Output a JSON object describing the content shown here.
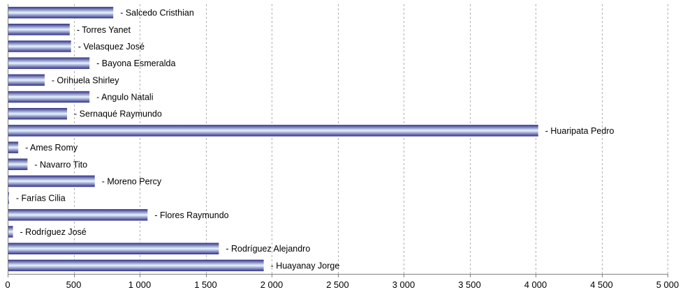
{
  "chart_data": {
    "type": "bar",
    "orientation": "horizontal",
    "categories": [
      "Salcedo Cristhian",
      "Torres Yanet",
      "Velasquez José",
      "Bayona Esmeralda",
      "Orihuela Shirley",
      "Angulo Natali",
      "Sernaqué Raymundo",
      "Huaripata Pedro",
      "Ames Romy",
      "Navarro Tito",
      "Moreno Percy",
      "Farías Cilia",
      "Flores Raymundo",
      "Rodríguez José",
      "Rodríguez Alejandro",
      "Huayanay Jorge"
    ],
    "label_prefix": "- ",
    "values": [
      800,
      470,
      480,
      620,
      280,
      620,
      450,
      4020,
      80,
      150,
      660,
      10,
      1060,
      40,
      1600,
      1940
    ],
    "xlim": [
      0,
      5000
    ],
    "x_ticks": [
      0,
      500,
      1000,
      1500,
      2000,
      2500,
      3000,
      3500,
      4000,
      4500,
      5000
    ],
    "x_tick_labels": [
      "0",
      "500",
      "1 000",
      "1 500",
      "2 000",
      "2 500",
      "3 000",
      "3 500",
      "4 000",
      "4 500",
      "5 000"
    ],
    "grid": "vertical dashed",
    "bar_color": "#33338a",
    "bar_highlight": "#e6f4ff",
    "title": "",
    "xlabel": "",
    "ylabel": ""
  }
}
